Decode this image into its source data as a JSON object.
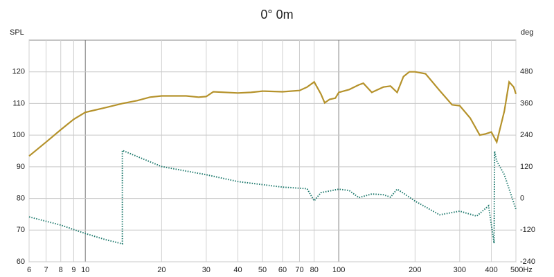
{
  "chart_data": {
    "type": "line",
    "title": "0° 0m",
    "y_label": "SPL",
    "y2_label": "deg",
    "log_x": true,
    "grid": true,
    "xlim": [
      6,
      500
    ],
    "ylim": [
      60,
      130
    ],
    "y2lim": [
      -240,
      600
    ],
    "xticks": [
      6,
      7,
      8,
      9,
      10,
      20,
      30,
      40,
      50,
      60,
      70,
      80,
      100,
      200,
      300,
      400,
      {
        "value": 500,
        "label": "500Hz"
      }
    ],
    "yticks": [
      60,
      70,
      80,
      90,
      100,
      110,
      120
    ],
    "y2ticks": [
      -240,
      -120,
      0,
      120,
      240,
      360,
      480
    ],
    "series": [
      {
        "color": "#b5922b",
        "style": "solid",
        "x": [
          6,
          7,
          8,
          9,
          10,
          12,
          14,
          16,
          18,
          20,
          25,
          28,
          30,
          32,
          40,
          45,
          50,
          60,
          70,
          75,
          80,
          85,
          88,
          92,
          97,
          100,
          110,
          120,
          125,
          135,
          150,
          160,
          170,
          180,
          190,
          200,
          220,
          250,
          280,
          300,
          330,
          360,
          380,
          400,
          420,
          450,
          470,
          490,
          500
        ],
        "values": [
          93.4,
          97.8,
          101.7,
          105,
          107.2,
          108.7,
          110,
          110.9,
          112,
          112.4,
          112.4,
          112,
          112.2,
          113.7,
          113.3,
          113.5,
          113.9,
          113.7,
          114.1,
          115.2,
          116.8,
          113,
          110.2,
          111.3,
          111.7,
          113.5,
          114.4,
          115.9,
          116.4,
          113.5,
          115.2,
          115.5,
          113.5,
          118.5,
          120,
          120,
          119.4,
          114.1,
          109.6,
          109.3,
          105.4,
          100,
          100.4,
          101,
          97.8,
          107.6,
          116.8,
          115.2,
          113
        ]
      },
      {
        "color": "#1f7a6e",
        "style": "dotted",
        "axis": "y2",
        "x": [
          6,
          8,
          10,
          12,
          14,
          14,
          20,
          30,
          40,
          60,
          75,
          80,
          85,
          100,
          110,
          120,
          135,
          150,
          160,
          170,
          180,
          200,
          250,
          300,
          350,
          390,
          410,
          412,
          420,
          450,
          500
        ],
        "values": [
          -70,
          -101,
          -133,
          -156,
          -172,
          182,
          121,
          90,
          64,
          43,
          37,
          -9,
          22,
          35,
          30,
          3,
          17,
          14,
          5,
          35,
          20,
          -10,
          -62,
          -48,
          -67,
          -28,
          -170,
          179,
          142,
          90,
          -41
        ]
      }
    ]
  }
}
